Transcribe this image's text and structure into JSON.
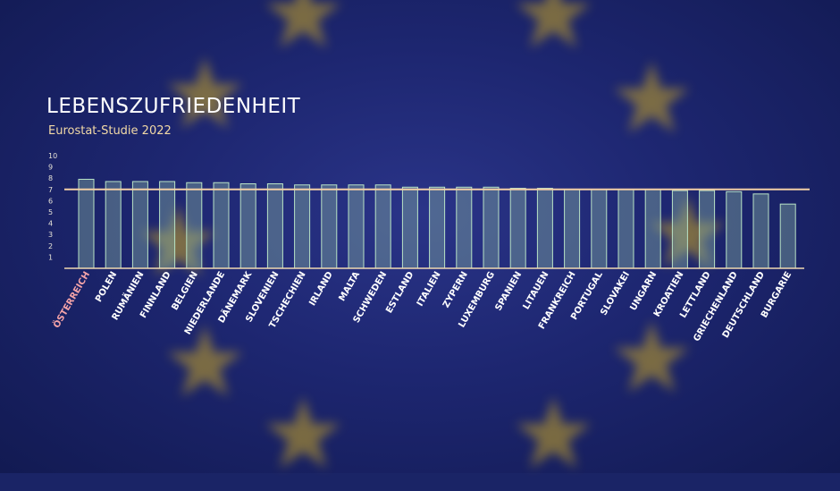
{
  "title": "LEBENSZUFRIEDENHEIT",
  "subtitle": "Eurostat-Studie 2022",
  "colors": {
    "bar_fill": "#7fa6a0",
    "bar_stroke": "#b9e3c6",
    "reference_line": "#f3cfa6",
    "highlight_label": "#f4a3a8",
    "star": "#c9a625"
  },
  "chart_data": {
    "type": "bar",
    "title": "LEBENSZUFRIEDENHEIT",
    "subtitle": "Eurostat-Studie 2022",
    "xlabel": "",
    "ylabel": "",
    "ylim": [
      0,
      10
    ],
    "yticks": [
      1,
      2,
      3,
      4,
      5,
      6,
      7,
      8,
      9,
      10
    ],
    "reference_line": 7.0,
    "highlight_category": "ÖSTERREICH",
    "categories": [
      "ÖSTERREICH",
      "POLEN",
      "RUMÄNIEN",
      "FINNLAND",
      "BELGIEN",
      "NIEDERLANDE",
      "DÄNEMARK",
      "SLOVENIEN",
      "TSCHECHIEN",
      "IRLAND",
      "MALTA",
      "SCHWEDEN",
      "ESTLAND",
      "ITALIEN",
      "ZYPERN",
      "LUXEMBURG",
      "SPANIEN",
      "LITAUEN",
      "FRANKREICH",
      "PORTUGAL",
      "SLOVAKEI",
      "UNGARN",
      "KROATIEN",
      "LETTLAND",
      "GRIECHENLAND",
      "DEUTSCHLAND",
      "BURGARIE"
    ],
    "values": [
      7.9,
      7.7,
      7.7,
      7.7,
      7.6,
      7.6,
      7.5,
      7.5,
      7.4,
      7.4,
      7.4,
      7.4,
      7.2,
      7.2,
      7.2,
      7.2,
      7.1,
      7.1,
      7.0,
      7.0,
      7.0,
      7.0,
      6.9,
      6.9,
      6.8,
      6.6,
      5.7
    ],
    "grid": false,
    "legend": "none"
  }
}
